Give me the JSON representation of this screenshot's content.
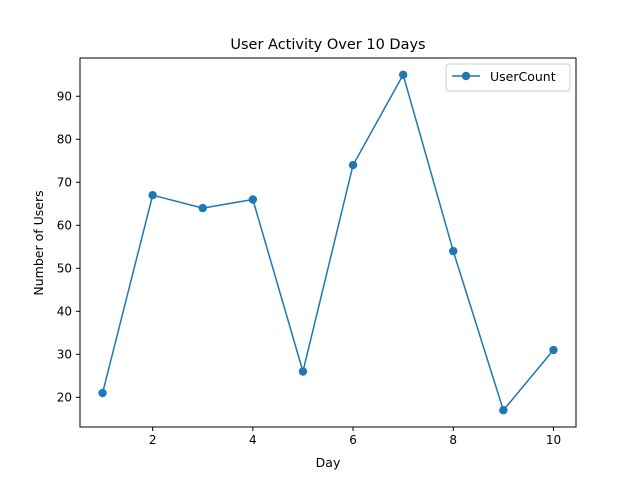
{
  "chart_data": {
    "type": "line",
    "title": "User Activity Over 10 Days",
    "xlabel": "Day",
    "ylabel": "Number of Users",
    "x": [
      1,
      2,
      3,
      4,
      5,
      6,
      7,
      8,
      9,
      10
    ],
    "series": [
      {
        "name": "UserCount",
        "values": [
          21,
          67,
          64,
          66,
          26,
          74,
          95,
          54,
          17,
          31
        ],
        "color": "#1f77b4",
        "marker": "circle"
      }
    ],
    "xlim": [
      0.55,
      10.45
    ],
    "ylim": [
      13.1,
      98.9
    ],
    "xticks": [
      2,
      4,
      6,
      8,
      10
    ],
    "yticks": [
      20,
      30,
      40,
      50,
      60,
      70,
      80,
      90
    ],
    "grid": false,
    "legend_position": "top-right"
  }
}
